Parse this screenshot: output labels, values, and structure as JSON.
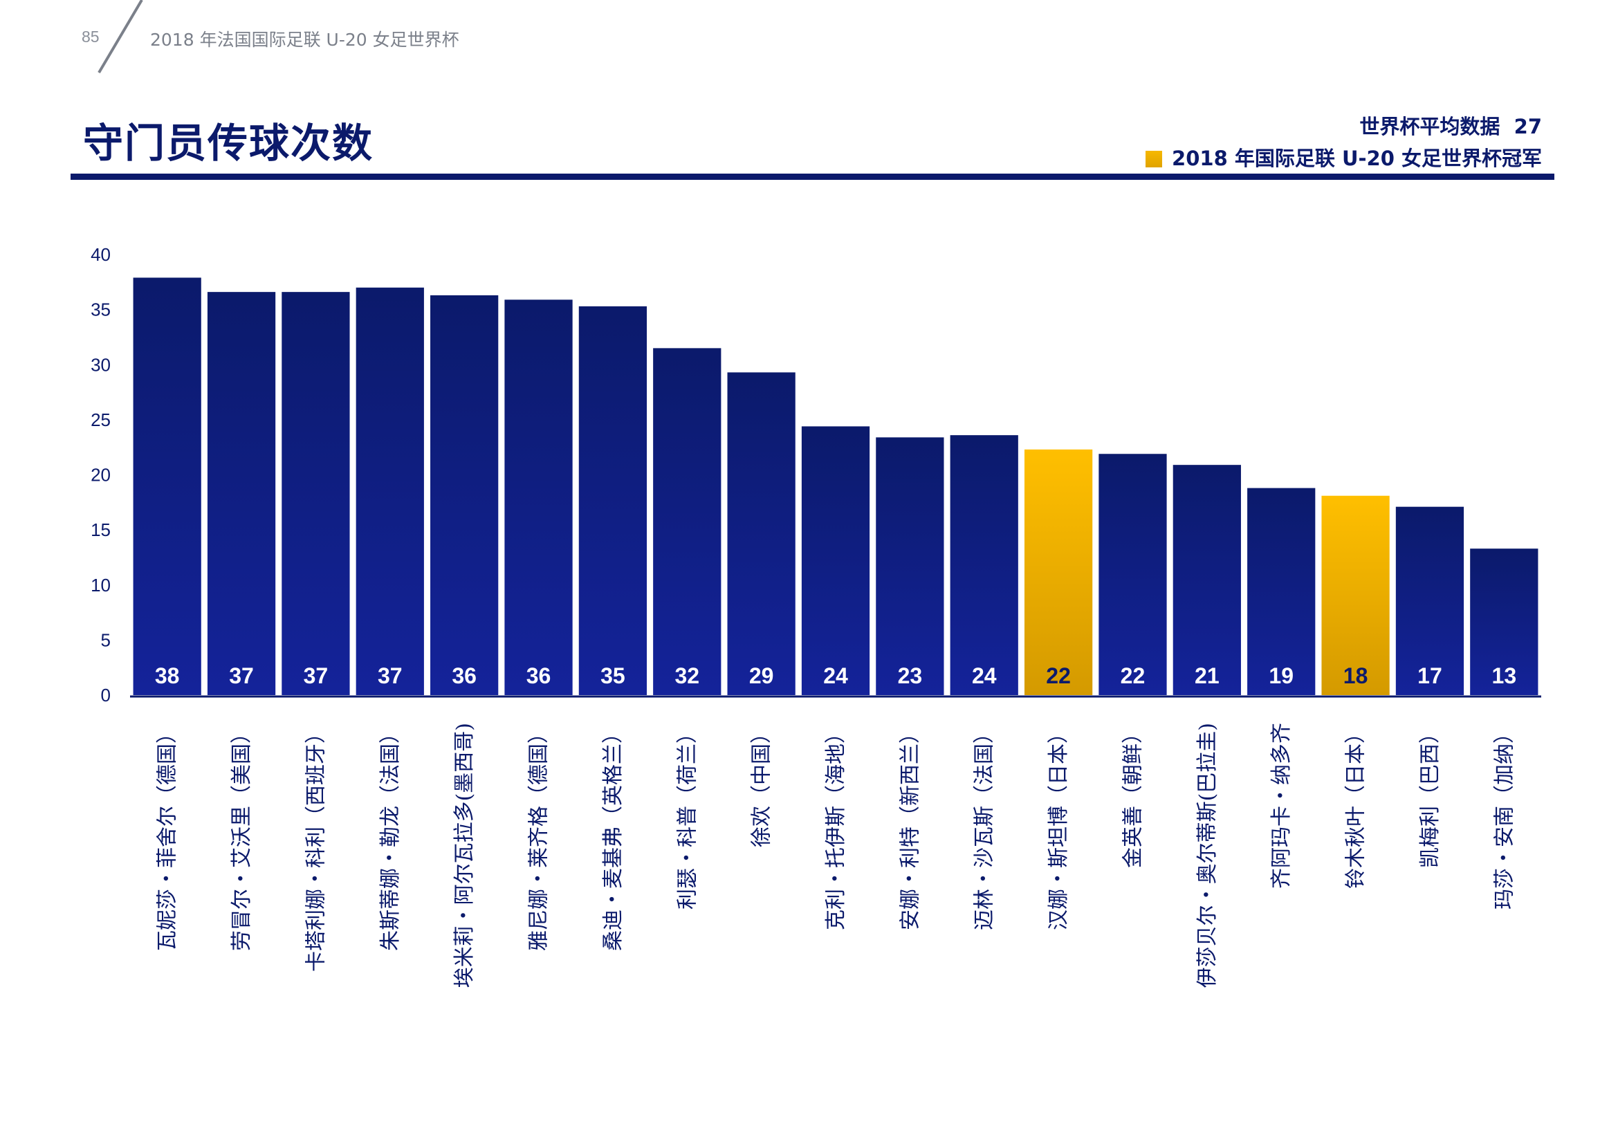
{
  "header": {
    "page_number": "85",
    "title": "2018 年法国国际足联 U-20 女足世界杯"
  },
  "main_title": "守门员传球次数",
  "legend": {
    "average_label": "世界杯平均数据",
    "average_value": "27",
    "champion_label": "2018 年国际足联 U-20 女足世界杯冠军"
  },
  "colors": {
    "bar_top": "#0b1a6b",
    "bar_bottom": "#14239a",
    "highlight_top": "#ffbf00",
    "highlight_bottom": "#d49a00",
    "title": "#0b1a6b"
  },
  "chart_data": {
    "type": "bar",
    "ylim": [
      0,
      40
    ],
    "yticks": [
      "0",
      "5",
      "10",
      "15",
      "20",
      "25",
      "30",
      "35",
      "40"
    ],
    "categories": [
      "瓦妮莎・菲舍尔（德国）",
      "劳冒尔・艾沃里（美国）",
      "卡塔利娜・科利（西班牙）",
      "朱斯蒂娜・勒龙（法国）",
      "埃米莉・阿尔瓦拉多(墨西哥)",
      "雅尼娜・莱齐格（德国）",
      "桑迪・麦基弗（英格兰）",
      "利瑟・科普（荷兰）",
      "徐欢（中国）",
      "克利・托伊斯（海地）",
      "安娜・利特（新西兰）",
      "迈林・沙瓦斯（法国）",
      "汉娜・斯坦博（日本）",
      "金英善（朝鲜）",
      "伊莎贝尔・奥尔蒂斯(巴拉圭)",
      "齐阿玛卡・纳多齐",
      "铃木秋叶（日本）",
      "凯梅利（巴西）",
      "玛莎・安南（加纳）"
    ],
    "values": [
      37.9,
      36.6,
      36.6,
      37.0,
      36.3,
      35.9,
      35.3,
      31.5,
      29.3,
      24.4,
      23.4,
      23.6,
      22.3,
      21.9,
      20.9,
      18.8,
      18.1,
      17.1,
      13.3
    ],
    "data_labels": [
      "38",
      "37",
      "37",
      "37",
      "36",
      "36",
      "35",
      "32",
      "29",
      "24",
      "23",
      "24",
      "22",
      "22",
      "21",
      "19",
      "18",
      "17",
      "13"
    ],
    "highlighted": [
      false,
      false,
      false,
      false,
      false,
      false,
      false,
      false,
      false,
      false,
      false,
      false,
      true,
      false,
      false,
      false,
      true,
      false,
      false
    ]
  }
}
